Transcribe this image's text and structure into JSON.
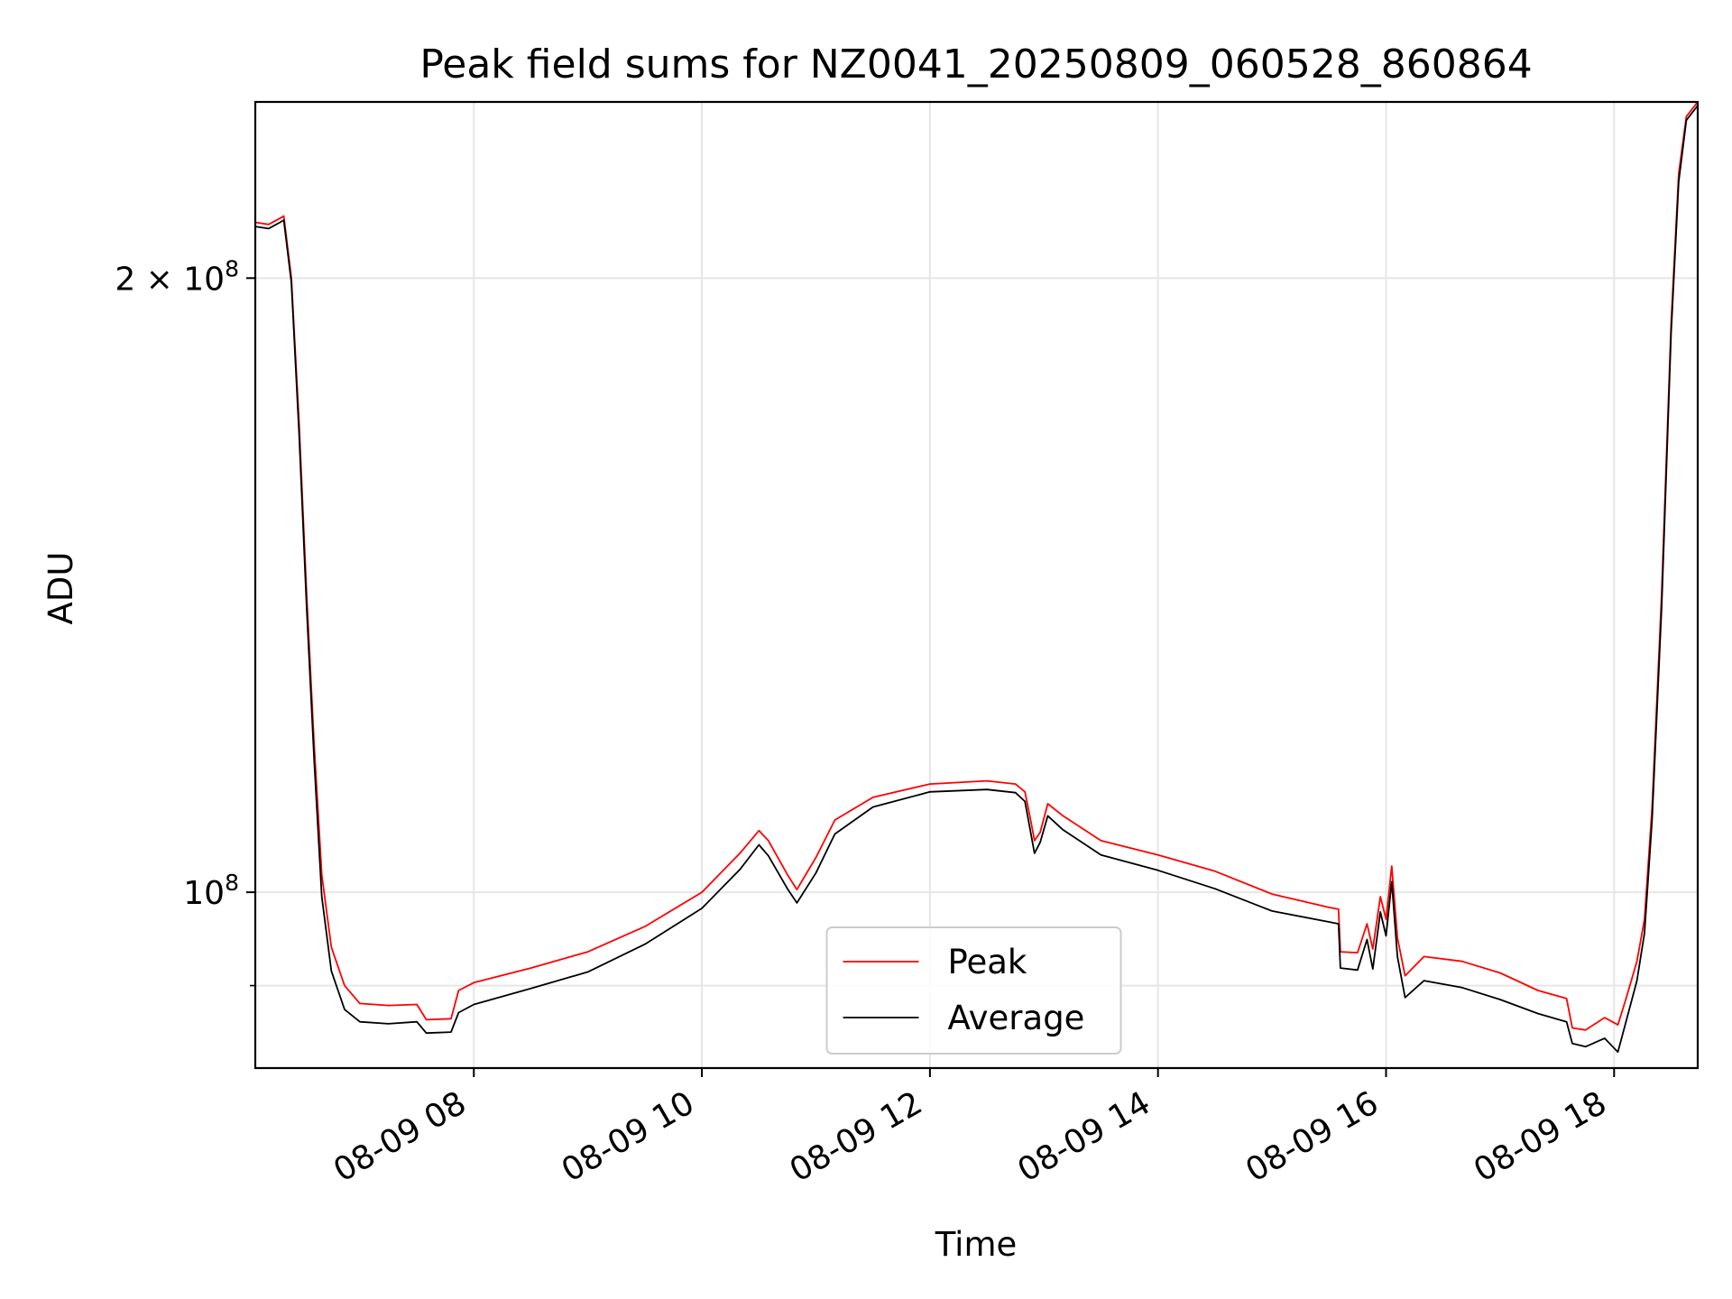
{
  "chart_data": {
    "type": "line",
    "title": "Peak field sums for NZ0041_20250809_060528_860864",
    "xlabel": "Time",
    "ylabel": "ADU",
    "y_scale": "log",
    "ylim": [
      82000000,
      244000000
    ],
    "xlim": [
      "08-09 06:05",
      "08-09 18:44"
    ],
    "grid": true,
    "legend_position": "lower center",
    "x_ticks": [
      {
        "value": "08-09 08:00",
        "label": "08-09 08"
      },
      {
        "value": "08-09 10:00",
        "label": "08-09 10"
      },
      {
        "value": "08-09 12:00",
        "label": "08-09 12"
      },
      {
        "value": "08-09 14:00",
        "label": "08-09 14"
      },
      {
        "value": "08-09 16:00",
        "label": "08-09 16"
      },
      {
        "value": "08-09 18:00",
        "label": "08-09 18"
      }
    ],
    "y_ticks": [
      {
        "value": 100000000,
        "label_base": "10",
        "label_exp": "8",
        "label_prefix": ""
      },
      {
        "value": 200000000,
        "label_base": "10",
        "label_exp": "8",
        "label_prefix": "2 × "
      }
    ],
    "y_minor_ticks": [
      90000000
    ],
    "series": [
      {
        "name": "Peak",
        "color": "#ff0000",
        "points": [
          [
            "08-09 06:05",
            213000000
          ],
          [
            "08-09 06:12",
            212500000
          ],
          [
            "08-09 06:18",
            214000000
          ],
          [
            "08-09 06:20",
            214500000
          ],
          [
            "08-09 06:24",
            200000000
          ],
          [
            "08-09 06:28",
            170000000
          ],
          [
            "08-09 06:32",
            140000000
          ],
          [
            "08-09 06:36",
            118000000
          ],
          [
            "08-09 06:40",
            102000000
          ],
          [
            "08-09 06:45",
            94000000
          ],
          [
            "08-09 06:52",
            90000000
          ],
          [
            "08-09 07:00",
            88200000
          ],
          [
            "08-09 07:15",
            88000000
          ],
          [
            "08-09 07:30",
            88100000
          ],
          [
            "08-09 07:35",
            86600000
          ],
          [
            "08-09 07:48",
            86700000
          ],
          [
            "08-09 07:52",
            89500000
          ],
          [
            "08-09 08:00",
            90300000
          ],
          [
            "08-09 08:30",
            91800000
          ],
          [
            "08-09 09:00",
            93500000
          ],
          [
            "08-09 09:30",
            96200000
          ],
          [
            "08-09 10:00",
            100000000
          ],
          [
            "08-09 10:20",
            104500000
          ],
          [
            "08-09 10:30",
            107200000
          ],
          [
            "08-09 10:35",
            106000000
          ],
          [
            "08-09 10:45",
            102000000
          ],
          [
            "08-09 10:50",
            100300000
          ],
          [
            "08-09 11:00",
            104000000
          ],
          [
            "08-09 11:10",
            108500000
          ],
          [
            "08-09 11:30",
            111300000
          ],
          [
            "08-09 12:00",
            113000000
          ],
          [
            "08-09 12:30",
            113400000
          ],
          [
            "08-09 12:45",
            113000000
          ],
          [
            "08-09 12:50",
            112000000
          ],
          [
            "08-09 12:53",
            108500000
          ],
          [
            "08-09 12:55",
            106000000
          ],
          [
            "08-09 12:58",
            107000000
          ],
          [
            "08-09 13:02",
            110500000
          ],
          [
            "08-09 13:10",
            109000000
          ],
          [
            "08-09 13:30",
            106000000
          ],
          [
            "08-09 14:00",
            104300000
          ],
          [
            "08-09 14:30",
            102400000
          ],
          [
            "08-09 15:00",
            99800000
          ],
          [
            "08-09 15:30",
            98300000
          ],
          [
            "08-09 15:35",
            98100000
          ],
          [
            "08-09 15:36",
            93500000
          ],
          [
            "08-09 15:45",
            93400000
          ],
          [
            "08-09 15:50",
            96500000
          ],
          [
            "08-09 15:53",
            93800000
          ],
          [
            "08-09 15:57",
            99500000
          ],
          [
            "08-09 16:00",
            97000000
          ],
          [
            "08-09 16:03",
            103000000
          ],
          [
            "08-09 16:06",
            95000000
          ],
          [
            "08-09 16:10",
            91000000
          ],
          [
            "08-09 16:20",
            93000000
          ],
          [
            "08-09 16:40",
            92500000
          ],
          [
            "08-09 17:00",
            91300000
          ],
          [
            "08-09 17:20",
            89500000
          ],
          [
            "08-09 17:35",
            88700000
          ],
          [
            "08-09 17:38",
            85800000
          ],
          [
            "08-09 17:45",
            85600000
          ],
          [
            "08-09 17:55",
            86800000
          ],
          [
            "08-09 18:02",
            86100000
          ],
          [
            "08-09 18:06",
            88500000
          ],
          [
            "08-09 18:12",
            92500000
          ],
          [
            "08-09 18:16",
            97000000
          ],
          [
            "08-09 18:20",
            110000000
          ],
          [
            "08-09 18:25",
            140000000
          ],
          [
            "08-09 18:30",
            190000000
          ],
          [
            "08-09 18:34",
            225000000
          ],
          [
            "08-09 18:38",
            240000000
          ],
          [
            "08-09 18:44",
            244000000
          ]
        ]
      },
      {
        "name": "Average",
        "color": "#000000",
        "points": [
          [
            "08-09 06:05",
            212000000
          ],
          [
            "08-09 06:12",
            211500000
          ],
          [
            "08-09 06:18",
            213000000
          ],
          [
            "08-09 06:20",
            213500000
          ],
          [
            "08-09 06:24",
            199000000
          ],
          [
            "08-09 06:28",
            168000000
          ],
          [
            "08-09 06:32",
            138000000
          ],
          [
            "08-09 06:36",
            116000000
          ],
          [
            "08-09 06:40",
            99500000
          ],
          [
            "08-09 06:45",
            91500000
          ],
          [
            "08-09 06:52",
            87600000
          ],
          [
            "08-09 07:00",
            86400000
          ],
          [
            "08-09 07:15",
            86200000
          ],
          [
            "08-09 07:30",
            86400000
          ],
          [
            "08-09 07:35",
            85300000
          ],
          [
            "08-09 07:48",
            85400000
          ],
          [
            "08-09 07:52",
            87300000
          ],
          [
            "08-09 08:00",
            88100000
          ],
          [
            "08-09 08:30",
            89700000
          ],
          [
            "08-09 09:00",
            91400000
          ],
          [
            "08-09 09:30",
            94300000
          ],
          [
            "08-09 10:00",
            98200000
          ],
          [
            "08-09 10:20",
            102600000
          ],
          [
            "08-09 10:30",
            105500000
          ],
          [
            "08-09 10:35",
            104200000
          ],
          [
            "08-09 10:45",
            100400000
          ],
          [
            "08-09 10:50",
            98800000
          ],
          [
            "08-09 11:00",
            102200000
          ],
          [
            "08-09 11:10",
            106800000
          ],
          [
            "08-09 11:30",
            110100000
          ],
          [
            "08-09 12:00",
            112000000
          ],
          [
            "08-09 12:30",
            112300000
          ],
          [
            "08-09 12:45",
            111900000
          ],
          [
            "08-09 12:50",
            110800000
          ],
          [
            "08-09 12:53",
            107000000
          ],
          [
            "08-09 12:55",
            104500000
          ],
          [
            "08-09 12:58",
            105800000
          ],
          [
            "08-09 13:02",
            109000000
          ],
          [
            "08-09 13:10",
            107300000
          ],
          [
            "08-09 13:30",
            104300000
          ],
          [
            "08-09 14:00",
            102500000
          ],
          [
            "08-09 14:30",
            100400000
          ],
          [
            "08-09 15:00",
            97900000
          ],
          [
            "08-09 15:30",
            96700000
          ],
          [
            "08-09 15:35",
            96500000
          ],
          [
            "08-09 15:36",
            91800000
          ],
          [
            "08-09 15:45",
            91600000
          ],
          [
            "08-09 15:50",
            94800000
          ],
          [
            "08-09 15:53",
            91700000
          ],
          [
            "08-09 15:57",
            97800000
          ],
          [
            "08-09 16:00",
            95200000
          ],
          [
            "08-09 16:03",
            101200000
          ],
          [
            "08-09 16:06",
            93000000
          ],
          [
            "08-09 16:10",
            88800000
          ],
          [
            "08-09 16:20",
            90500000
          ],
          [
            "08-09 16:40",
            89800000
          ],
          [
            "08-09 17:00",
            88600000
          ],
          [
            "08-09 17:20",
            87200000
          ],
          [
            "08-09 17:35",
            86400000
          ],
          [
            "08-09 17:38",
            84300000
          ],
          [
            "08-09 17:45",
            84000000
          ],
          [
            "08-09 17:55",
            84800000
          ],
          [
            "08-09 18:02",
            83500000
          ],
          [
            "08-09 18:06",
            86200000
          ],
          [
            "08-09 18:12",
            90500000
          ],
          [
            "08-09 18:16",
            95500000
          ],
          [
            "08-09 18:20",
            108500000
          ],
          [
            "08-09 18:25",
            138000000
          ],
          [
            "08-09 18:30",
            188000000
          ],
          [
            "08-09 18:34",
            223000000
          ],
          [
            "08-09 18:38",
            239000000
          ],
          [
            "08-09 18:44",
            243000000
          ]
        ]
      }
    ]
  }
}
